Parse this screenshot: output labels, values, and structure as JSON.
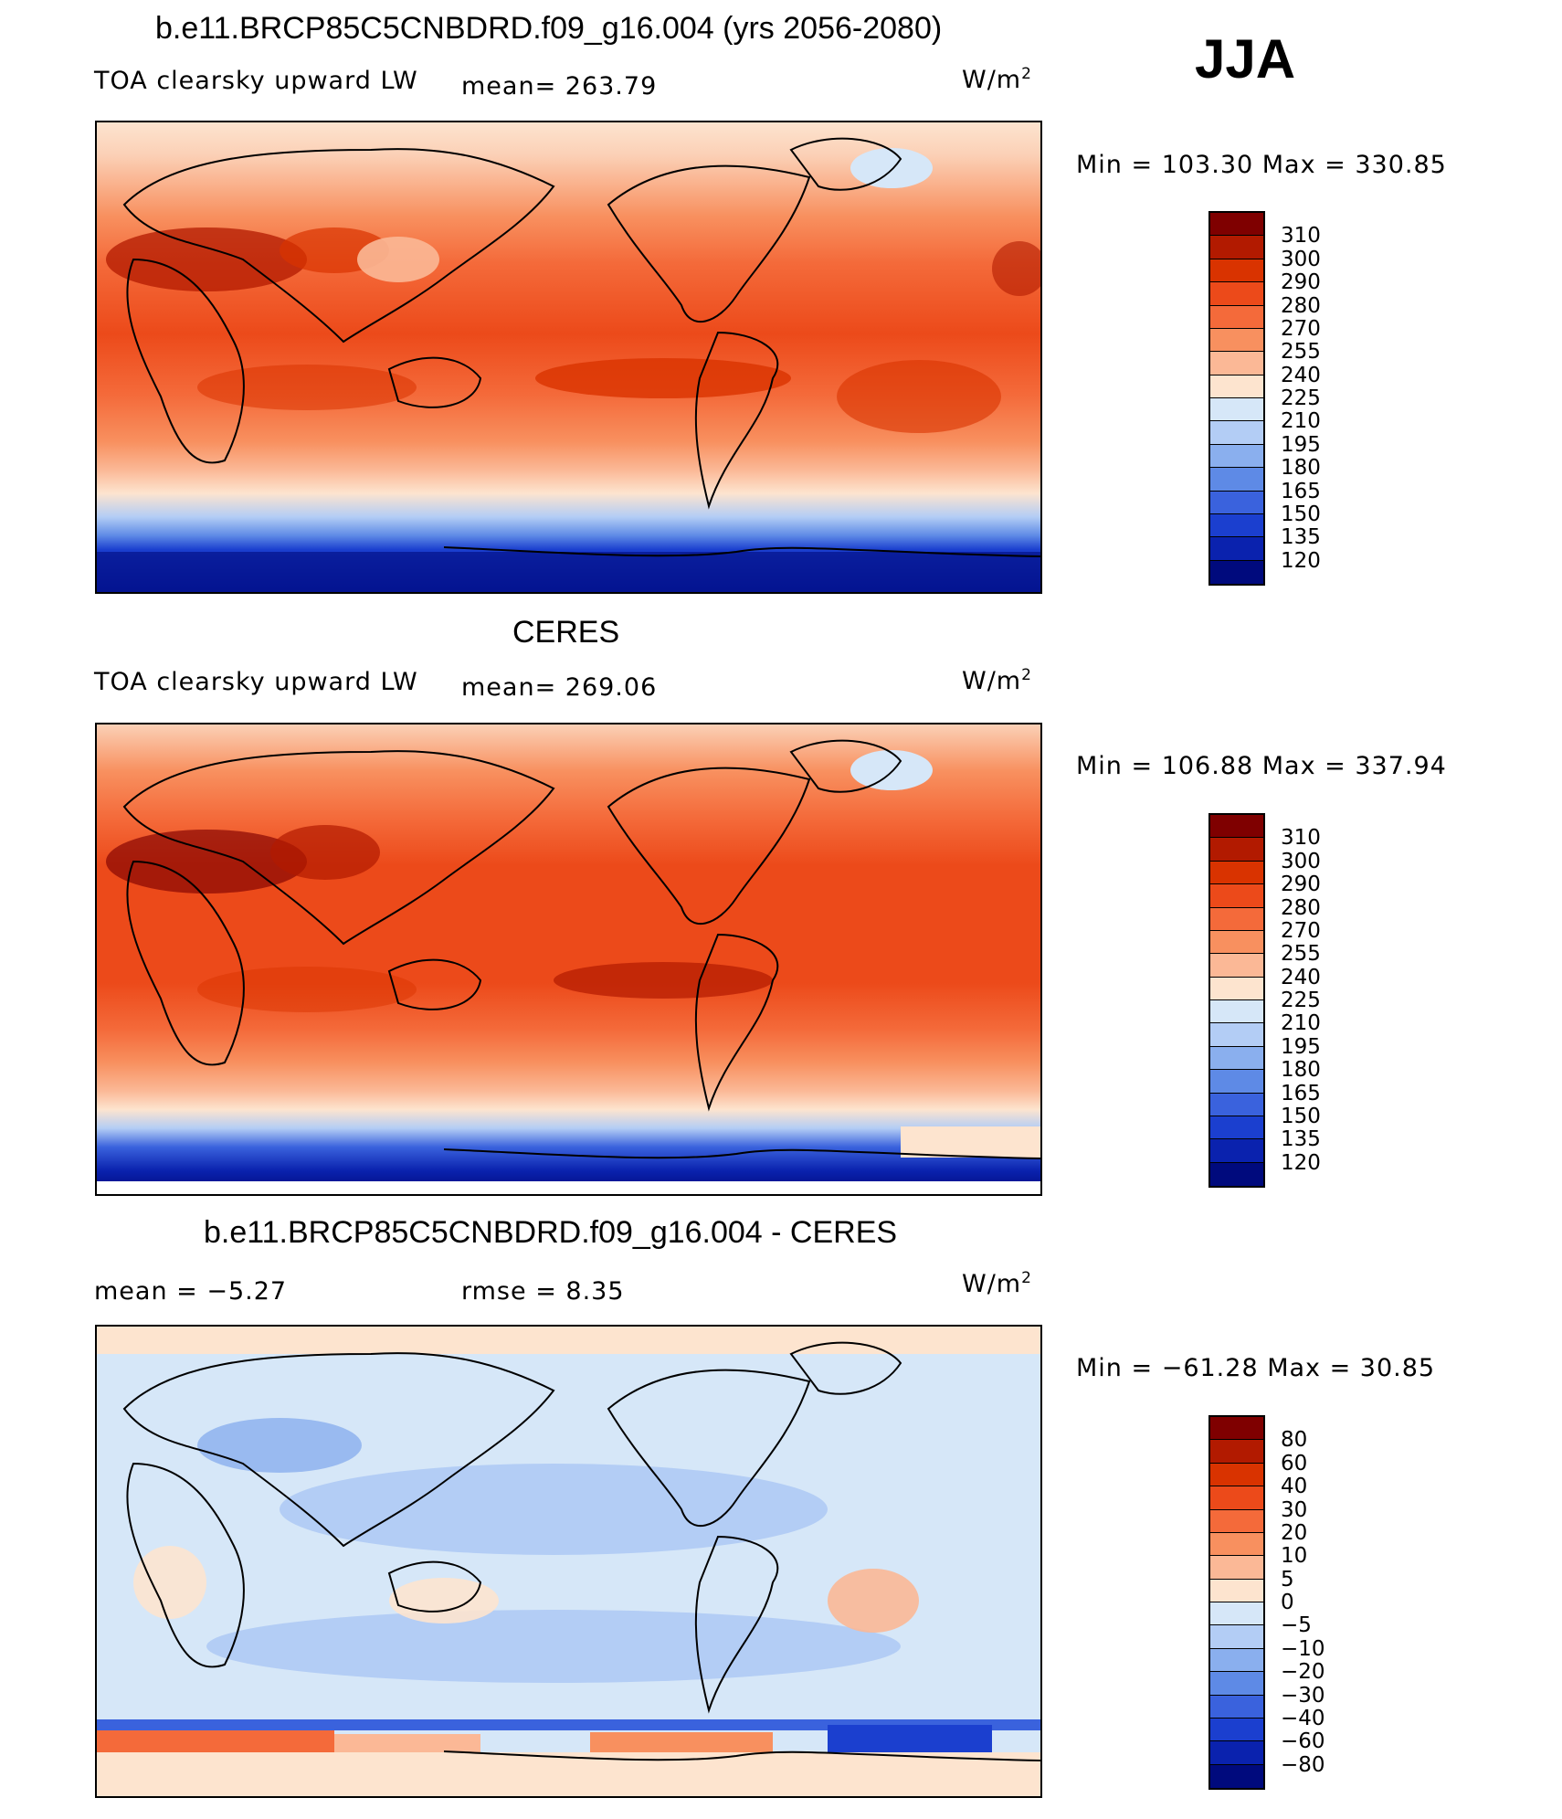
{
  "season": "JJA",
  "units": "W/m",
  "units_sup": "2",
  "panels": [
    {
      "title": "b.e11.BRCP85C5CNBDRD.f09_g16.004 (yrs 2056-2080)",
      "variable": "TOA clearsky upward LW",
      "stat": "mean=  263.79",
      "minmax": "Min  =  103.30  Max  =  330.85",
      "levels": [
        "310",
        "300",
        "290",
        "280",
        "270",
        "255",
        "240",
        "225",
        "210",
        "195",
        "180",
        "165",
        "150",
        "135",
        "120"
      ],
      "colors": [
        "#7f0000",
        "#b21a00",
        "#d93300",
        "#ec4a1a",
        "#f46a3a",
        "#f8905f",
        "#fbb896",
        "#fde4cf",
        "#d6e7f8",
        "#b3cdf5",
        "#8aafee",
        "#5e8ae6",
        "#3a62dd",
        "#1b3fcf",
        "#0a22ae",
        "#000a7d"
      ]
    },
    {
      "title": "CERES",
      "variable": "TOA clearsky upward LW",
      "stat": "mean=  269.06",
      "minmax": "Min  =  106.88  Max  =  337.94",
      "levels": [
        "310",
        "300",
        "290",
        "280",
        "270",
        "255",
        "240",
        "225",
        "210",
        "195",
        "180",
        "165",
        "150",
        "135",
        "120"
      ],
      "colors": [
        "#7f0000",
        "#b21a00",
        "#d93300",
        "#ec4a1a",
        "#f46a3a",
        "#f8905f",
        "#fbb896",
        "#fde4cf",
        "#d6e7f8",
        "#b3cdf5",
        "#8aafee",
        "#5e8ae6",
        "#3a62dd",
        "#1b3fcf",
        "#0a22ae",
        "#000a7d"
      ]
    },
    {
      "title": "b.e11.BRCP85C5CNBDRD.f09_g16.004 - CERES",
      "stat_mean": "mean =   −5.27",
      "stat_rmse": "rmse =    8.35",
      "minmax": "Min  =  −61.28  Max  =   30.85",
      "levels": [
        "80",
        "60",
        "40",
        "30",
        "20",
        "10",
        "5",
        "0",
        "−5",
        "−10",
        "−20",
        "−30",
        "−40",
        "−60",
        "−80"
      ],
      "colors": [
        "#7f0000",
        "#b21a00",
        "#d93300",
        "#ec4a1a",
        "#f46a3a",
        "#f8905f",
        "#fbb896",
        "#fde4cf",
        "#d6e7f8",
        "#b3cdf5",
        "#8aafee",
        "#5e8ae6",
        "#3a62dd",
        "#1b3fcf",
        "#0a22ae",
        "#000a7d"
      ]
    }
  ]
}
